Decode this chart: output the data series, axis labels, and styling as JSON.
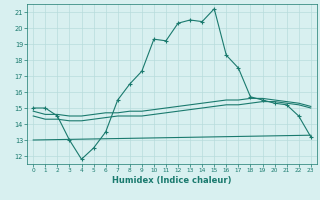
{
  "xlabel": "Humidex (Indice chaleur)",
  "line_main": {
    "x": [
      0,
      1,
      2,
      3,
      4,
      5,
      6,
      7,
      8,
      9,
      10,
      11,
      12,
      13,
      14,
      15,
      16,
      17,
      18,
      19,
      20,
      21,
      22,
      23
    ],
    "y": [
      15,
      15,
      14.5,
      13,
      11.8,
      12.5,
      13.5,
      15.5,
      16.5,
      17.3,
      19.3,
      19.2,
      20.3,
      20.5,
      20.4,
      21.2,
      18.3,
      17.5,
      15.7,
      15.5,
      15.3,
      15.2,
      14.5,
      13.2
    ]
  },
  "line_flat_low": {
    "x": [
      0,
      23
    ],
    "y": [
      13.0,
      13.3
    ]
  },
  "line_mid1": {
    "x": [
      0,
      1,
      2,
      3,
      4,
      5,
      6,
      7,
      8,
      9,
      10,
      11,
      12,
      13,
      14,
      15,
      16,
      17,
      18,
      19,
      20,
      21,
      22,
      23
    ],
    "y": [
      14.5,
      14.3,
      14.3,
      14.2,
      14.2,
      14.3,
      14.4,
      14.5,
      14.5,
      14.5,
      14.6,
      14.7,
      14.8,
      14.9,
      15.0,
      15.1,
      15.2,
      15.2,
      15.3,
      15.4,
      15.4,
      15.3,
      15.2,
      15.0
    ]
  },
  "line_mid2": {
    "x": [
      0,
      1,
      2,
      3,
      4,
      5,
      6,
      7,
      8,
      9,
      10,
      11,
      12,
      13,
      14,
      15,
      16,
      17,
      18,
      19,
      20,
      21,
      22,
      23
    ],
    "y": [
      14.8,
      14.6,
      14.6,
      14.5,
      14.5,
      14.6,
      14.7,
      14.7,
      14.8,
      14.8,
      14.9,
      15.0,
      15.1,
      15.2,
      15.3,
      15.4,
      15.5,
      15.5,
      15.6,
      15.6,
      15.5,
      15.4,
      15.3,
      15.1
    ]
  },
  "color": "#1a7a6e",
  "bg_color": "#d8f0f0",
  "grid_color": "#b8dcdc",
  "ylim": [
    11.5,
    21.5
  ],
  "xlim": [
    -0.5,
    23.5
  ],
  "yticks": [
    12,
    13,
    14,
    15,
    16,
    17,
    18,
    19,
    20,
    21
  ],
  "xticks": [
    0,
    1,
    2,
    3,
    4,
    5,
    6,
    7,
    8,
    9,
    10,
    11,
    12,
    13,
    14,
    15,
    16,
    17,
    18,
    19,
    20,
    21,
    22,
    23
  ]
}
